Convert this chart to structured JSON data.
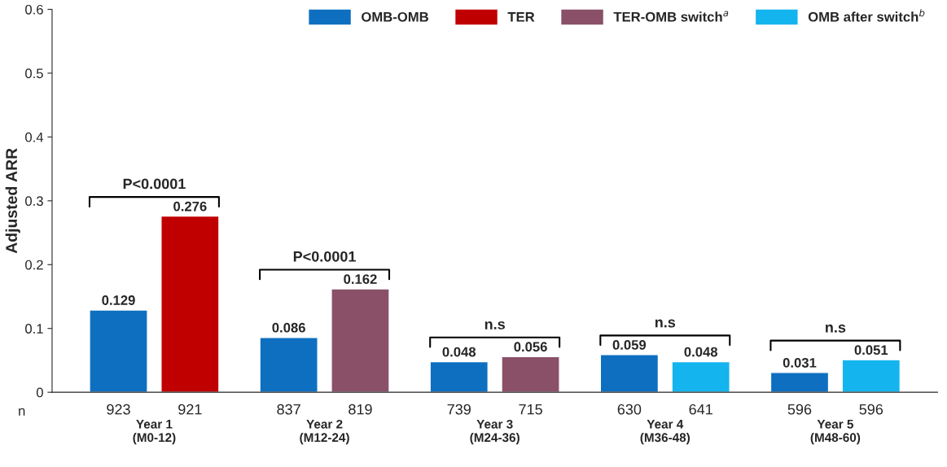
{
  "chart_data": {
    "type": "bar",
    "ylabel": "Adjusted ARR",
    "categories": [
      "Year 1\n(M0-12)",
      "Year 2\n(M12-24)",
      "Year 3\n(M24-36)",
      "Year 4\n(M36-48)",
      "Year 5\n(M48-60)"
    ],
    "series": [
      {
        "name": "OMB-OMB",
        "color": "#0e6fc0",
        "values": [
          0.129,
          0.086,
          0.048,
          0.059,
          0.031
        ]
      },
      {
        "name": "TER",
        "color": "#c00000",
        "values": [
          0.276,
          null,
          null,
          null,
          null
        ]
      },
      {
        "name": "TER-OMB switch$^{a}$",
        "color": "#8a5068",
        "values": [
          null,
          0.162,
          0.056,
          null,
          null
        ]
      },
      {
        "name": "OMB after switch$^{b}$",
        "color": "#14b4ee",
        "values": [
          null,
          null,
          null,
          0.048,
          0.051
        ]
      }
    ],
    "ylim": [
      0,
      0.6
    ],
    "yticks": [
      0,
      0.1,
      0.2,
      0.3,
      0.4,
      0.5,
      0.6
    ],
    "data_labels": true,
    "grid": false,
    "legend": "top right",
    "annotations": [
      "P<0.0001",
      "P<0.0001",
      "n.s",
      "n.s",
      "n.s",
      "n",
      "923",
      "921",
      "837",
      "819",
      "739",
      "715",
      "630",
      "641",
      "596",
      "596"
    ]
  }
}
